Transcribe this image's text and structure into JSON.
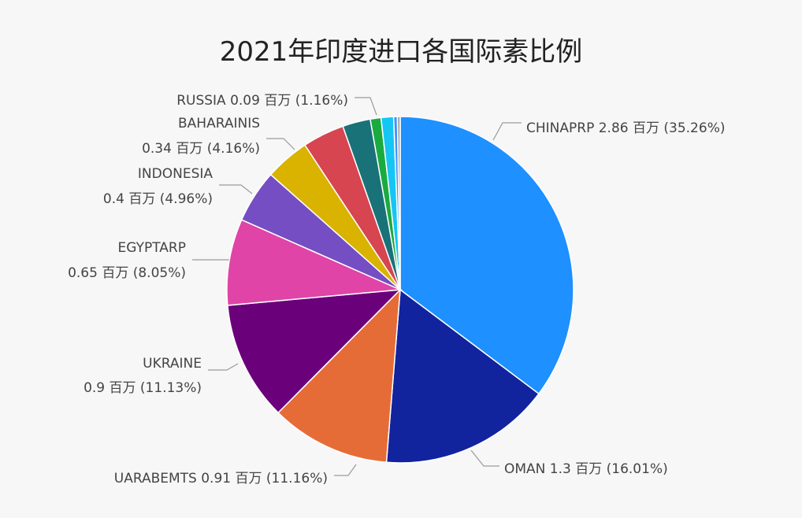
{
  "chart_data": {
    "type": "pie",
    "title": "2021年印度进口各国际素比例",
    "unit": "百万",
    "slices": [
      {
        "name": "CHINAPRP",
        "value": 2.86,
        "percent": 35.26,
        "color": "#1e90ff",
        "label": [
          "CHINAPRP 2.86 百万 (35.26%)"
        ]
      },
      {
        "name": "OMAN",
        "value": 1.3,
        "percent": 16.01,
        "color": "#12239e",
        "label": [
          "OMAN 1.3 百万 (16.01%)"
        ]
      },
      {
        "name": "UARABEMTS",
        "value": 0.91,
        "percent": 11.16,
        "color": "#e66c37",
        "label": [
          "UARABEMTS 0.91 百万 (11.16%)"
        ]
      },
      {
        "name": "UKRAINE",
        "value": 0.9,
        "percent": 11.13,
        "color": "#6b007b",
        "label": [
          "UKRAINE",
          "0.9 百万 (11.13%)"
        ]
      },
      {
        "name": "EGYPTARP",
        "value": 0.65,
        "percent": 8.05,
        "color": "#e044a7",
        "label": [
          "EGYPTARP",
          "0.65 百万 (8.05%)"
        ]
      },
      {
        "name": "INDONESIA",
        "value": 0.4,
        "percent": 4.96,
        "color": "#744ec2",
        "label": [
          "INDONESIA",
          "0.4 百万 (4.96%)"
        ]
      },
      {
        "name": "BAHARAINIS",
        "value": 0.34,
        "percent": 4.16,
        "color": "#d9b300",
        "label": [
          "BAHARAINIS",
          "0.34 百万 (4.16%)"
        ]
      },
      {
        "name": "",
        "value": null,
        "percent": 3.9,
        "color": "#d64550",
        "label": []
      },
      {
        "name": "",
        "value": null,
        "percent": 2.6,
        "color": "#197278",
        "label": []
      },
      {
        "name": "",
        "value": null,
        "percent": 1.0,
        "color": "#1aab40",
        "label": []
      },
      {
        "name": "RUSSIA",
        "value": 0.09,
        "percent": 1.16,
        "color": "#15c6f4",
        "label": [
          "RUSSIA 0.09 百万 (1.16%)"
        ]
      },
      {
        "name": "",
        "value": null,
        "percent": 0.35,
        "color": "#4092ff",
        "label": []
      },
      {
        "name": "",
        "value": null,
        "percent": 0.26,
        "color": "#a0a0a0",
        "label": []
      }
    ]
  }
}
